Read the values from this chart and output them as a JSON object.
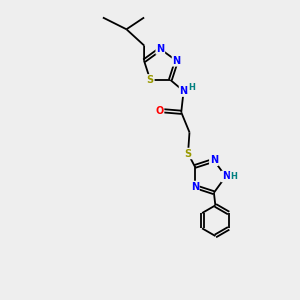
{
  "background_color": "#eeeeee",
  "colors": {
    "N": "#0000FF",
    "S": "#999900",
    "O": "#FF0000",
    "C": "#000000",
    "H": "#008080"
  },
  "figsize": [
    3.0,
    3.0
  ],
  "dpi": 100
}
